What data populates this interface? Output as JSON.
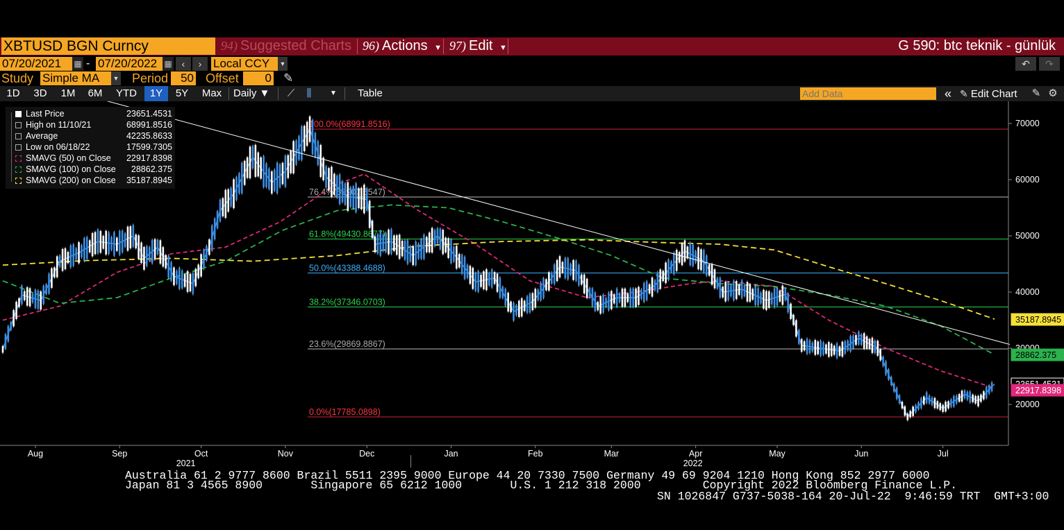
{
  "topbar": {
    "security": "XBTUSD BGN Curncy",
    "suggested_num": "94)",
    "suggested_label": "Suggested Charts",
    "actions_num": "96)",
    "actions_label": "Actions",
    "edit_num": "97)",
    "edit_label": "Edit",
    "chart_name": "G 590: btc teknik - günlük"
  },
  "range": {
    "start": "07/20/2021",
    "dash": "-",
    "end": "07/20/2022",
    "currency": "Local CCY"
  },
  "study": {
    "label": "Study",
    "value": "Simple MA",
    "period_label": "Period",
    "period": "50",
    "offset_label": "Offset",
    "offset": "0"
  },
  "toolbar": {
    "ranges": [
      "1D",
      "3D",
      "1M",
      "6M",
      "YTD",
      "1Y",
      "5Y",
      "Max"
    ],
    "active": "1Y",
    "frequency": "Daily ▼",
    "table": "Table",
    "add_data_placeholder": "Add Data",
    "edit_chart": "Edit Chart"
  },
  "legend": [
    {
      "name": "Last Price",
      "value": "23651.4531",
      "color": "#ffffff"
    },
    {
      "name": "High on 11/10/21",
      "value": "68991.8516",
      "color": "#aaaaaa"
    },
    {
      "name": "Average",
      "value": "42235.8633",
      "color": "#aaaaaa"
    },
    {
      "name": "Low on 06/18/22",
      "value": "17599.7305",
      "color": "#aaaaaa"
    },
    {
      "name": "SMAVG (50)  on Close",
      "value": "22917.8398",
      "color": "#e0287a"
    },
    {
      "name": "SMAVG (100)  on Close",
      "value": "28862.375",
      "color": "#2bb24c"
    },
    {
      "name": "SMAVG (200)  on Close",
      "value": "35187.8945",
      "color": "#f5e03a"
    }
  ],
  "chart_data": {
    "type": "line",
    "ylim": [
      12000,
      74000
    ],
    "yticks": [
      "70000",
      "60000",
      "50000",
      "40000",
      "30000",
      "20000"
    ],
    "ytick_values": [
      70000,
      60000,
      50000,
      40000,
      30000,
      20000
    ],
    "xticks": [
      "Aug",
      "Sep",
      "Oct",
      "Nov",
      "Dec",
      "Jan",
      "Feb",
      "Mar",
      "Apr",
      "May",
      "Jun",
      "Jul"
    ],
    "xtick_dates": [
      "2021-08-01",
      "2021-09-01",
      "2021-10-01",
      "2021-11-01",
      "2021-12-01",
      "2022-01-01",
      "2022-02-01",
      "2022-03-01",
      "2022-04-01",
      "2022-05-01",
      "2022-06-01",
      "2022-07-01"
    ],
    "year_labels": [
      "2021",
      "2022"
    ],
    "x_start": "2021-07-20",
    "x_end": "2022-07-20",
    "price": {
      "name": "Last Price",
      "color": "#3a8fe6",
      "x": [
        "2021-07-20",
        "2021-07-27",
        "2021-08-03",
        "2021-08-10",
        "2021-08-17",
        "2021-08-24",
        "2021-08-31",
        "2021-09-06",
        "2021-09-10",
        "2021-09-15",
        "2021-09-21",
        "2021-09-28",
        "2021-10-04",
        "2021-10-08",
        "2021-10-13",
        "2021-10-20",
        "2021-10-27",
        "2021-11-01",
        "2021-11-10",
        "2021-11-16",
        "2021-11-24",
        "2021-12-01",
        "2021-12-04",
        "2021-12-10",
        "2021-12-18",
        "2021-12-27",
        "2022-01-03",
        "2022-01-10",
        "2022-01-17",
        "2022-01-24",
        "2022-01-31",
        "2022-02-07",
        "2022-02-10",
        "2022-02-16",
        "2022-02-24",
        "2022-03-03",
        "2022-03-10",
        "2022-03-17",
        "2022-03-28",
        "2022-04-04",
        "2022-04-11",
        "2022-04-18",
        "2022-04-27",
        "2022-05-04",
        "2022-05-10",
        "2022-05-17",
        "2022-05-24",
        "2022-05-31",
        "2022-06-07",
        "2022-06-13",
        "2022-06-18",
        "2022-06-25",
        "2022-07-01",
        "2022-07-09",
        "2022-07-14",
        "2022-07-20"
      ],
      "y": [
        29800,
        39500,
        38500,
        45500,
        47000,
        49000,
        48500,
        50000,
        46000,
        48000,
        42800,
        41500,
        48000,
        54500,
        57500,
        64000,
        59500,
        61500,
        68991,
        60500,
        57000,
        56500,
        48500,
        49000,
        46500,
        50000,
        46200,
        41800,
        42500,
        36500,
        38300,
        42500,
        44500,
        43800,
        37500,
        39000,
        39000,
        41200,
        47300,
        45500,
        40000,
        40500,
        38500,
        39600,
        30500,
        30000,
        29500,
        31800,
        30000,
        23000,
        17800,
        21200,
        19300,
        21800,
        20600,
        23651
      ]
    },
    "series": [
      {
        "name": "SMAVG (50)  on Close",
        "color": "#e0287a",
        "dash": "6,4",
        "x": [
          "2021-07-20",
          "2021-08-10",
          "2021-08-31",
          "2021-09-20",
          "2021-10-10",
          "2021-10-30",
          "2021-11-19",
          "2021-11-30",
          "2021-12-20",
          "2022-01-10",
          "2022-01-30",
          "2022-02-20",
          "2022-03-10",
          "2022-03-30",
          "2022-04-10",
          "2022-04-30",
          "2022-05-20",
          "2022-06-10",
          "2022-06-30",
          "2022-07-20"
        ],
        "y": [
          35000,
          37500,
          43500,
          46800,
          48000,
          52500,
          59000,
          61000,
          54500,
          48500,
          42000,
          39000,
          40000,
          41500,
          42000,
          41000,
          35000,
          30000,
          26000,
          22918
        ]
      },
      {
        "name": "SMAVG (100)  on Close",
        "color": "#2bb24c",
        "dash": "8,5",
        "x": [
          "2021-07-20",
          "2021-08-10",
          "2021-08-31",
          "2021-09-20",
          "2021-10-10",
          "2021-10-31",
          "2021-11-20",
          "2021-12-10",
          "2021-12-31",
          "2022-01-20",
          "2022-02-10",
          "2022-03-01",
          "2022-03-20",
          "2022-04-10",
          "2022-04-30",
          "2022-05-20",
          "2022-06-10",
          "2022-06-30",
          "2022-07-20"
        ],
        "y": [
          42000,
          38000,
          39000,
          42500,
          45500,
          51000,
          54500,
          55500,
          55000,
          52500,
          49500,
          46500,
          42500,
          41500,
          41000,
          39500,
          37500,
          34000,
          28862
        ]
      },
      {
        "name": "SMAVG (200)  on Close",
        "color": "#f5e03a",
        "dash": "8,5",
        "x": [
          "2021-07-20",
          "2021-08-20",
          "2021-09-20",
          "2021-10-20",
          "2021-11-20",
          "2021-12-20",
          "2022-01-20",
          "2022-02-20",
          "2022-03-20",
          "2022-04-10",
          "2022-04-30",
          "2022-05-20",
          "2022-06-10",
          "2022-06-30",
          "2022-07-20"
        ],
        "y": [
          44800,
          45600,
          46000,
          45500,
          46500,
          48200,
          49000,
          49300,
          48800,
          48500,
          47500,
          44500,
          41500,
          38500,
          35188
        ]
      }
    ],
    "fib_levels": [
      {
        "label": "100.0%(68991.8516)",
        "value": 68991.8516,
        "line": "#cc2233",
        "text": "#ff3344"
      },
      {
        "label": "76.4%(56907.6547)",
        "value": 56907.6547,
        "line": "#bbbbbb",
        "text": "#aaaaaa"
      },
      {
        "label": "61.8%(49430.8677)",
        "value": 49430.8677,
        "line": "#2bd34c",
        "text": "#2bd34c"
      },
      {
        "label": "50.0%(43388.4688)",
        "value": 43388.4688,
        "line": "#3ab0ff",
        "text": "#3ab0ff"
      },
      {
        "label": "38.2%(37346.0703)",
        "value": 37346.0703,
        "line": "#2bd34c",
        "text": "#2bd34c"
      },
      {
        "label": "23.6%(29869.8867)",
        "value": 29869.8867,
        "line": "#bbbbbb",
        "text": "#aaaaaa"
      },
      {
        "label": "0.0%(17785.0898)",
        "value": 17785.0898,
        "line": "#cc2233",
        "text": "#ff3344"
      }
    ],
    "trendline": {
      "from": {
        "x": "2021-07-20",
        "y": 79000
      },
      "to": {
        "x": "2022-07-20",
        "y": 30800
      },
      "color": "#ffffff"
    },
    "badges": [
      {
        "text": "35187.8945",
        "value": 35187.8945,
        "bg": "#f5e03a",
        "fg": "#000000"
      },
      {
        "text": "28862.375",
        "value": 28862.375,
        "bg": "#2bb24c",
        "fg": "#000000"
      },
      {
        "text": "23651.4531",
        "value": 23651.4531,
        "bg": "#000000",
        "fg": "#ffffff"
      },
      {
        "text": "22917.8398",
        "value": 22917.8398,
        "bg": "#e0287a",
        "fg": "#ffffff"
      }
    ]
  },
  "footer": {
    "line1": "Australia 61 2 9777 8600 Brazil 5511 2395 9000 Europe 44 20 7330 7500 Germany 49 69 9204 1210 Hong Kong 852 2977 6000",
    "line2": "Japan 81 3 4565 8900       Singapore 65 6212 1000       U.S. 1 212 318 2000         Copyright 2022 Bloomberg Finance L.P.",
    "line3": "SN 1026847 G737-5038-164 20-Jul-22  9:46:59 TRT  GMT+3:00"
  }
}
